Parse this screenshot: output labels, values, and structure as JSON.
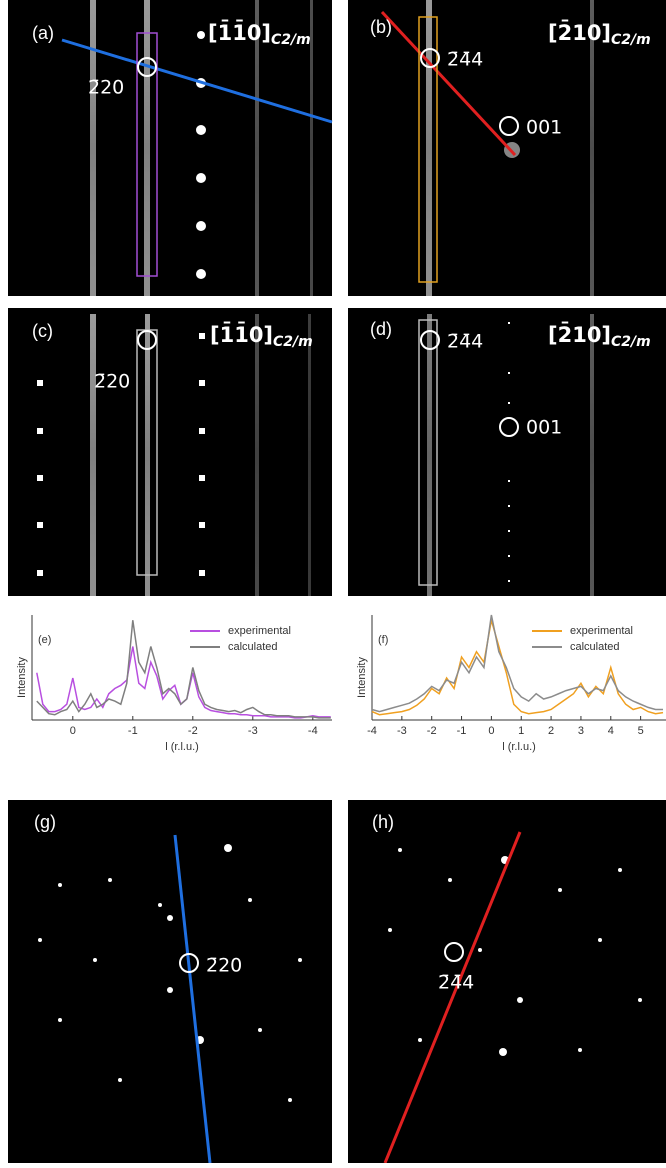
{
  "panels": [
    {
      "label": "(a)",
      "zone": "[1̄1̄0]",
      "sub": "C2/m",
      "reflections": [
        "2̄20"
      ]
    },
    {
      "label": "(b)",
      "zone": "[2̄10]",
      "sub": "C2/m",
      "reflections": [
        "2̄4̄4",
        "001"
      ]
    },
    {
      "label": "(c)",
      "zone": "[1̄1̄0]",
      "sub": "C2/m",
      "reflections": [
        "2̄20"
      ]
    },
    {
      "label": "(d)",
      "zone": "[2̄10]",
      "sub": "C2/m",
      "reflections": [
        "2̄4̄4",
        "001"
      ]
    },
    {
      "label": "(g)",
      "reflections": [
        "2̄20"
      ]
    },
    {
      "label": "(h)",
      "reflections": [
        "2̄4̄4"
      ]
    }
  ],
  "chart_data": [
    {
      "type": "line",
      "panel_label": "(e)",
      "xlabel": "l (r.l.u.)",
      "ylabel": "Intensity",
      "xlim": [
        0.68,
        -4.32
      ],
      "xticks": [
        0,
        -1,
        -2,
        -3,
        -4
      ],
      "ylim": [
        0,
        100
      ],
      "legend": "upper right",
      "x": [
        0.6,
        0.5,
        0.4,
        0.3,
        0.2,
        0.1,
        0,
        -0.1,
        -0.2,
        -0.3,
        -0.4,
        -0.5,
        -0.6,
        -0.7,
        -0.8,
        -0.9,
        -1.0,
        -1.1,
        -1.2,
        -1.3,
        -1.4,
        -1.5,
        -1.6,
        -1.7,
        -1.8,
        -1.9,
        -2.0,
        -2.1,
        -2.2,
        -2.3,
        -2.4,
        -2.5,
        -2.6,
        -2.7,
        -2.8,
        -2.9,
        -3.0,
        -3.1,
        -3.2,
        -3.3,
        -3.4,
        -3.5,
        -3.6,
        -3.7,
        -3.8,
        -3.9,
        -4.0,
        -4.1,
        -4.2,
        -4.3
      ],
      "series": [
        {
          "name": "experimental",
          "color": "#b84fe0",
          "values": [
            45,
            15,
            8,
            8,
            10,
            15,
            40,
            12,
            10,
            12,
            20,
            12,
            25,
            30,
            33,
            38,
            70,
            35,
            30,
            55,
            42,
            20,
            28,
            33,
            15,
            20,
            45,
            22,
            12,
            9,
            8,
            7,
            6,
            6,
            5,
            5,
            4,
            4,
            4,
            3,
            3,
            3,
            3,
            2,
            2,
            3,
            4,
            3,
            3,
            3
          ]
        },
        {
          "name": "calculated",
          "color": "#7f7f7f",
          "values": [
            18,
            12,
            6,
            5,
            8,
            10,
            18,
            8,
            15,
            25,
            12,
            15,
            20,
            18,
            15,
            35,
            95,
            55,
            45,
            70,
            50,
            25,
            30,
            25,
            15,
            20,
            50,
            28,
            15,
            12,
            10,
            9,
            8,
            9,
            7,
            10,
            12,
            8,
            5,
            5,
            4,
            4,
            4,
            3,
            3,
            3,
            3,
            2,
            2,
            2
          ]
        }
      ]
    },
    {
      "type": "line",
      "panel_label": "(f)",
      "xlabel": "l (r.l.u.)",
      "ylabel": "Intensity",
      "xlim": [
        -4,
        5.85
      ],
      "xticks": [
        -4,
        -3,
        -2,
        -1,
        0,
        1,
        2,
        3,
        4,
        5
      ],
      "ylim": [
        0,
        100
      ],
      "legend": "upper right",
      "x": [
        -4,
        -3.75,
        -3.5,
        -3.25,
        -3,
        -2.75,
        -2.5,
        -2.25,
        -2,
        -1.75,
        -1.5,
        -1.25,
        -1,
        -0.75,
        -0.5,
        -0.25,
        0,
        0.25,
        0.5,
        0.75,
        1,
        1.25,
        1.5,
        1.75,
        2,
        2.25,
        2.5,
        2.75,
        3,
        3.25,
        3.5,
        3.75,
        4,
        4.25,
        4.5,
        4.75,
        5,
        5.25,
        5.5,
        5.75
      ],
      "series": [
        {
          "name": "experimental",
          "color": "#f0a020",
          "values": [
            8,
            5,
            6,
            7,
            8,
            10,
            14,
            20,
            30,
            25,
            40,
            30,
            60,
            50,
            65,
            55,
            95,
            70,
            45,
            15,
            8,
            6,
            7,
            8,
            10,
            15,
            20,
            25,
            35,
            22,
            32,
            25,
            50,
            25,
            15,
            10,
            12,
            8,
            6,
            7
          ]
        },
        {
          "name": "calculated",
          "color": "#8c8c8c",
          "values": [
            10,
            8,
            10,
            12,
            14,
            16,
            20,
            25,
            32,
            28,
            38,
            35,
            55,
            45,
            60,
            50,
            100,
            65,
            50,
            30,
            22,
            18,
            25,
            20,
            22,
            25,
            28,
            30,
            32,
            25,
            30,
            28,
            42,
            28,
            22,
            18,
            15,
            12,
            10,
            10
          ]
        }
      ]
    }
  ]
}
